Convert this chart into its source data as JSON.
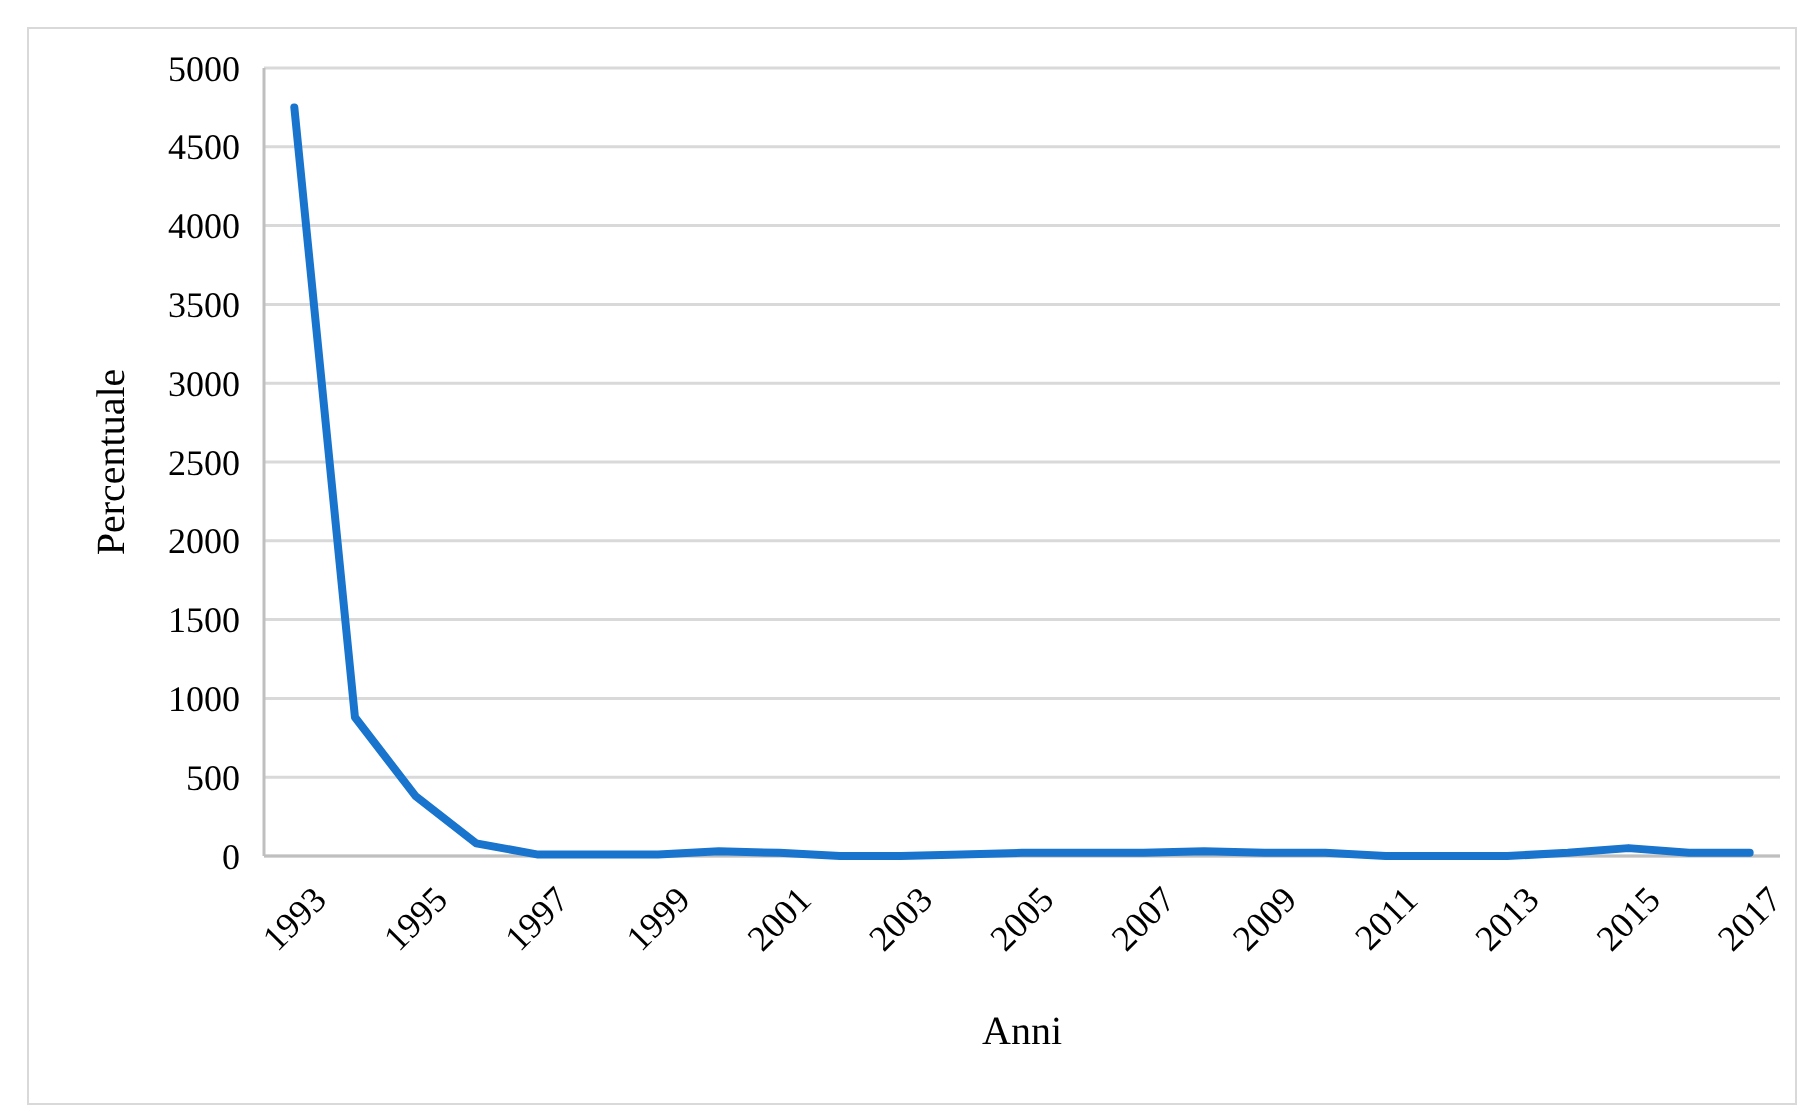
{
  "chart_data": {
    "type": "line",
    "xlabel": "Anni",
    "ylabel": "Percentuale",
    "x": [
      1993,
      1994,
      1995,
      1996,
      1997,
      1998,
      1999,
      2000,
      2001,
      2002,
      2003,
      2004,
      2005,
      2006,
      2007,
      2008,
      2009,
      2010,
      2011,
      2012,
      2013,
      2014,
      2015,
      2016,
      2017
    ],
    "series": [
      {
        "color": "#1874cd",
        "values": [
          4750,
          880,
          380,
          80,
          10,
          10,
          10,
          30,
          20,
          0,
          0,
          10,
          20,
          20,
          20,
          30,
          20,
          20,
          0,
          0,
          0,
          20,
          50,
          20,
          20
        ]
      }
    ],
    "xlim": [
      1992.5,
      2017.5
    ],
    "xticks": [
      1993,
      1995,
      1997,
      1999,
      2001,
      2003,
      2005,
      2007,
      2009,
      2011,
      2013,
      2015,
      2017
    ],
    "ylim": [
      0,
      5000
    ],
    "yticks": [
      0,
      500,
      1000,
      1500,
      2000,
      2500,
      3000,
      3500,
      4000,
      4500,
      5000
    ],
    "grid": "y",
    "marker": "none",
    "line_style": "solid"
  }
}
